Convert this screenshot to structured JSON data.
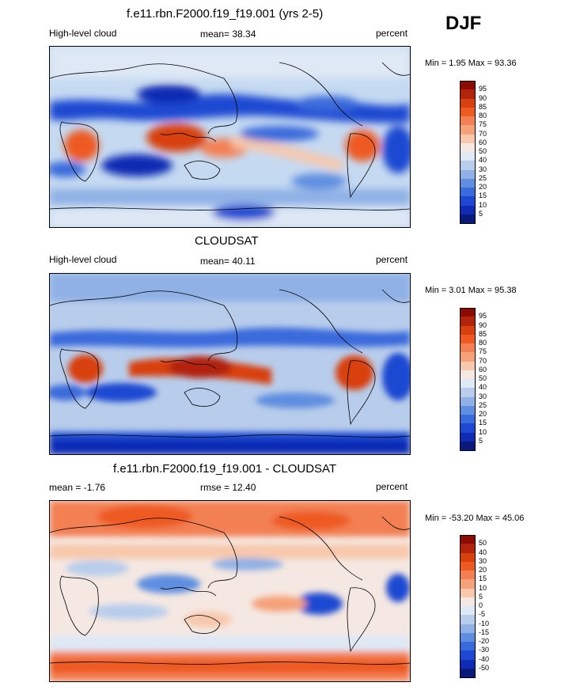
{
  "season": "DJF",
  "panels": [
    {
      "title": "f.e11.rbn.F2000.f19_f19.001 (yrs 2-5)",
      "left_label": "High-level cloud",
      "center_label": "mean=  38.34",
      "right_label": "percent",
      "minmax": "Min =   1.95 Max =  93.36",
      "colorbar": {
        "labels": [
          "95",
          "90",
          "85",
          "80",
          "75",
          "70",
          "60",
          "50",
          "40",
          "30",
          "25",
          "20",
          "15",
          "10",
          "5"
        ],
        "colors": [
          "#8b0b00",
          "#b2230c",
          "#d8400f",
          "#ee5a22",
          "#f38052",
          "#f5a27a",
          "#f8c8ac",
          "#f5e8e2",
          "#dfe8f5",
          "#b8cdeb",
          "#8fb1e6",
          "#5f8ee0",
          "#3a6bdc",
          "#1f48d2",
          "#102bb3",
          "#0a1a7c"
        ]
      }
    },
    {
      "title": "CLOUDSAT",
      "left_label": "High-level cloud",
      "center_label": "mean=  40.11",
      "right_label": "percent",
      "minmax": "Min =   3.01 Max =  95.38",
      "colorbar": {
        "labels": [
          "95",
          "90",
          "85",
          "80",
          "75",
          "70",
          "60",
          "50",
          "40",
          "30",
          "25",
          "20",
          "15",
          "10",
          "5"
        ],
        "colors": [
          "#8b0b00",
          "#b2230c",
          "#d8400f",
          "#ee5a22",
          "#f38052",
          "#f5a27a",
          "#f8c8ac",
          "#f5e8e2",
          "#dfe8f5",
          "#b8cdeb",
          "#8fb1e6",
          "#5f8ee0",
          "#3a6bdc",
          "#1f48d2",
          "#102bb3",
          "#0a1a7c"
        ]
      }
    },
    {
      "title": "f.e11.rbn.F2000.f19_f19.001 - CLOUDSAT",
      "left_label": "mean =  -1.76",
      "center_label": "rmse =  12.40",
      "right_label": "percent",
      "minmax": "Min = -53.20 Max =  45.06",
      "colorbar": {
        "labels": [
          "50",
          "40",
          "30",
          "20",
          "15",
          "10",
          "5",
          "0",
          "-5",
          "-10",
          "-15",
          "-20",
          "-30",
          "-40",
          "-50"
        ],
        "colors": [
          "#8b0b00",
          "#b2230c",
          "#d8400f",
          "#ee5a22",
          "#f38052",
          "#f5a27a",
          "#f8c8ac",
          "#f5e8e2",
          "#dfe8f5",
          "#b8cdeb",
          "#8fb1e6",
          "#5f8ee0",
          "#3a6bdc",
          "#1f48d2",
          "#102bb3",
          "#0a1a7c"
        ]
      }
    }
  ]
}
